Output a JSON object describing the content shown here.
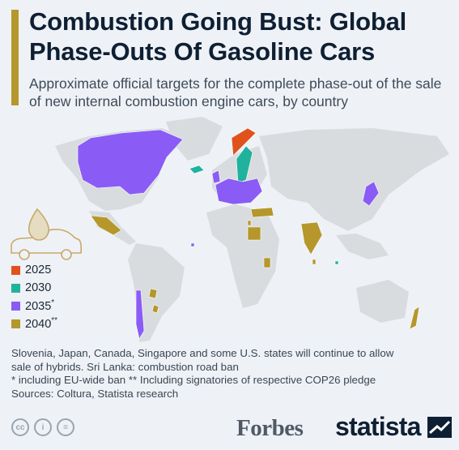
{
  "title": "Combustion Going Bust: Global Phase-Outs Of Gasoline Cars",
  "subtitle": "Approximate official targets for the complete phase-out of the sale of new internal combustion engine cars, by country",
  "colors": {
    "accent": "#b5972c",
    "land": "#d9dcdf",
    "y2025": "#e0521c",
    "y2030": "#1fb29c",
    "y2035": "#8a5cf5",
    "y2040": "#b5972c",
    "car_icon": "#c9a86a"
  },
  "chart_data": {
    "type": "choropleth map",
    "legend": [
      {
        "label": "2025",
        "marker": "",
        "color_key": "y2025"
      },
      {
        "label": "2030",
        "marker": "",
        "color_key": "y2030"
      },
      {
        "label": "2035",
        "marker": "*",
        "color_key": "y2035"
      },
      {
        "label": "2040",
        "marker": "**",
        "color_key": "y2040"
      }
    ],
    "regions": [
      {
        "name": "Norway",
        "target": "2025"
      },
      {
        "name": "Iceland",
        "target": "2030"
      },
      {
        "name": "Sweden",
        "target": "2030"
      },
      {
        "name": "Singapore",
        "target": "2030"
      },
      {
        "name": "Canada",
        "target": "2035"
      },
      {
        "name": "EU member states",
        "target": "2035"
      },
      {
        "name": "United Kingdom",
        "target": "2035"
      },
      {
        "name": "Japan",
        "target": "2035"
      },
      {
        "name": "Chile",
        "target": "2035"
      },
      {
        "name": "Cape Verde",
        "target": "2035"
      },
      {
        "name": "Mexico",
        "target": "2040"
      },
      {
        "name": "India",
        "target": "2040"
      },
      {
        "name": "Egypt",
        "target": "2040"
      },
      {
        "name": "Turkey",
        "target": "2040"
      },
      {
        "name": "Uruguay",
        "target": "2040"
      },
      {
        "name": "Paraguay",
        "target": "2040"
      },
      {
        "name": "New Zealand",
        "target": "2040"
      },
      {
        "name": "Kenya",
        "target": "2040"
      },
      {
        "name": "Sri Lanka",
        "target": "2040"
      },
      {
        "name": "Israel",
        "target": "2040"
      }
    ]
  },
  "notes": {
    "line1": "Slovenia, Japan, Canada, Singapore and some U.S. states will continue to allow",
    "line2": "sale of hybrids. Sri Lanka: combustion road ban",
    "line3": "* including EU-wide ban   ** Including signatories of respective COP26 pledge",
    "line4": "Sources: Coltura, Statista research"
  },
  "footer": {
    "cc_icons": [
      "creative-commons-icon",
      "attribution-icon",
      "no-derivatives-icon"
    ],
    "cc_glyphs": [
      "cc",
      "i",
      "="
    ],
    "partner": "Forbes",
    "brand": "statista"
  }
}
